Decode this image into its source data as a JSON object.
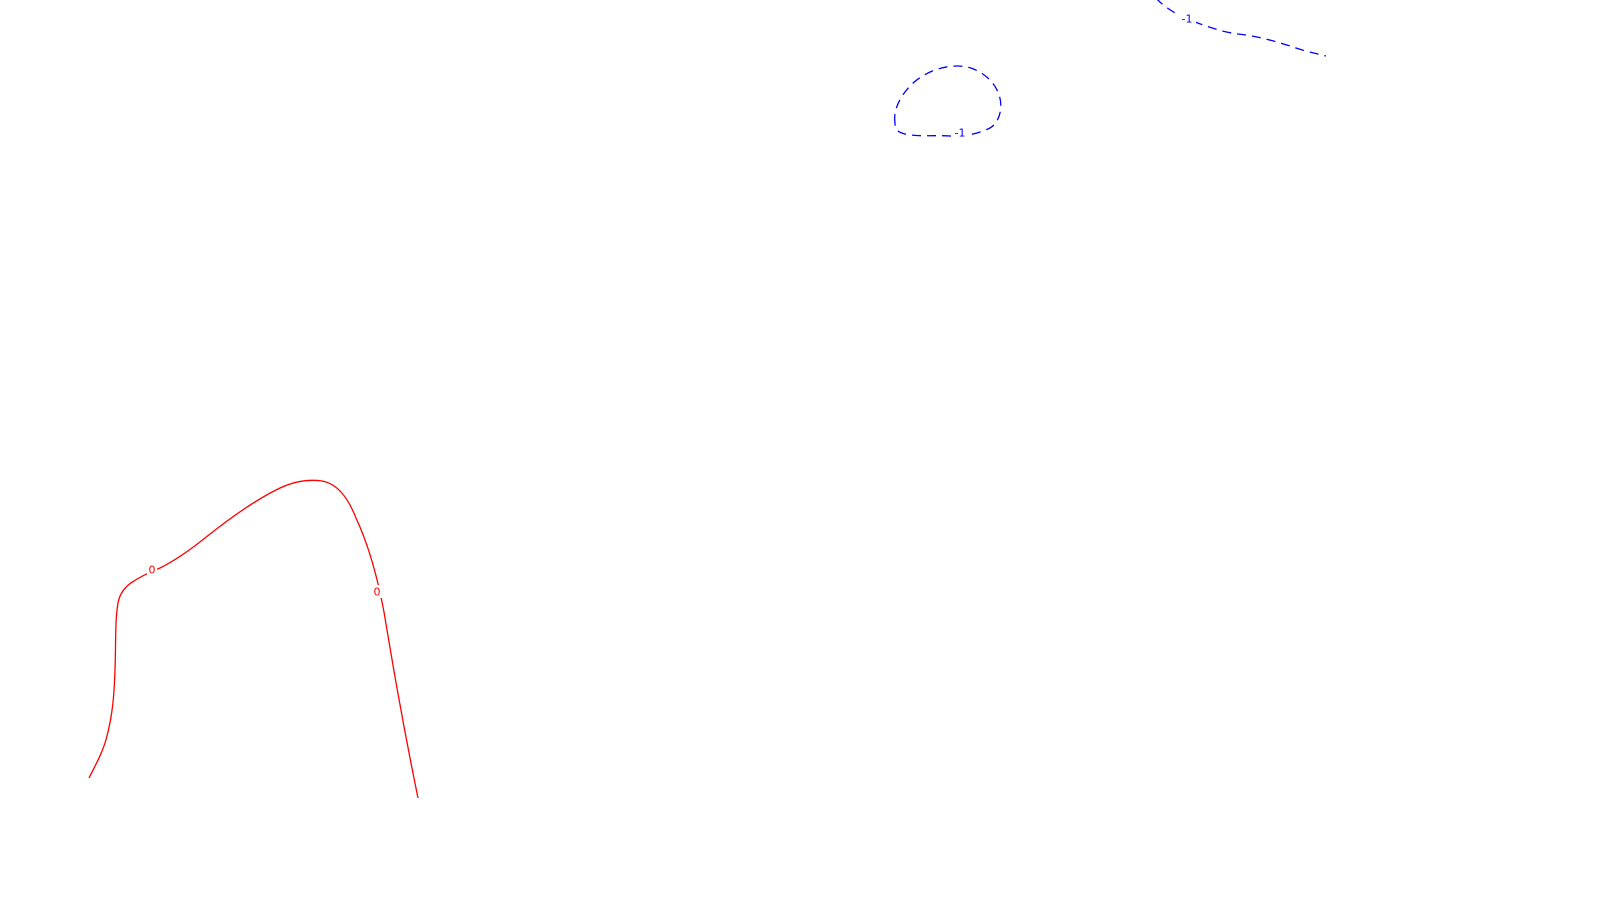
{
  "chart_data": {
    "type": "contour",
    "title": "",
    "xlabel": "",
    "ylabel": "",
    "grid": false,
    "legend": "none",
    "levels": [
      {
        "value": 0,
        "label": "0",
        "color": "#ff0000",
        "style": "solid",
        "segment_count": 1
      },
      {
        "value": -1,
        "label": "-1",
        "color": "#0000ff",
        "style": "dashed",
        "segment_count": 2
      }
    ]
  }
}
